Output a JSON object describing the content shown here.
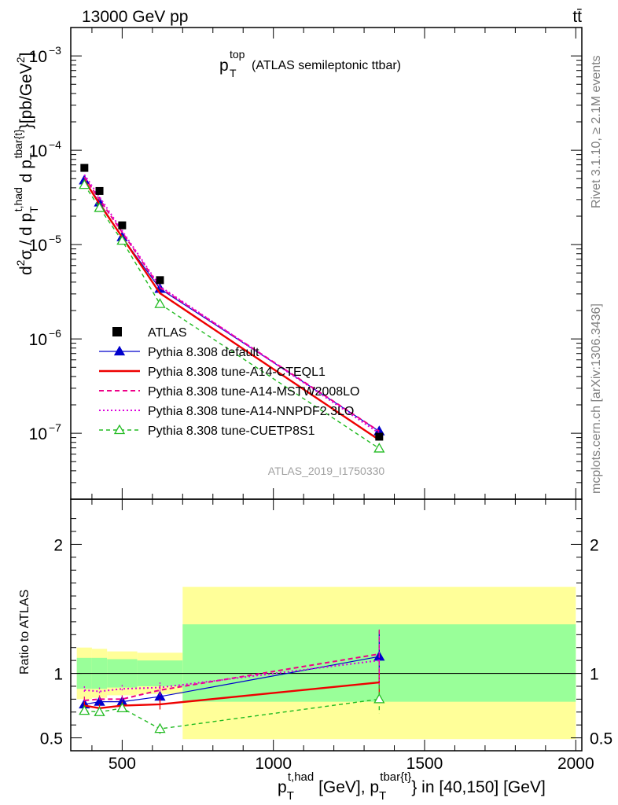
{
  "header": {
    "energy": "13000 GeV pp",
    "process": "tt̄"
  },
  "side": {
    "rivet": "Rivet 3.1.10, ≥ 2.1M events",
    "mcplots": "mcplots.cern.ch [arXiv:1306.3436]"
  },
  "plot": {
    "title_main": "p",
    "title_sub": "T",
    "title_sup": "top",
    "title_rest": "(ATLAS semileptonic ttbar)",
    "analysis_id": "ATLAS_2019_I1750330",
    "ylabel": "d²σ / d p_T^{t,had} d p_T^{tbar{t}} [pb/GeV²]",
    "ratio_ylabel": "Ratio to ATLAS",
    "xlabel": "p_T^{t,had} [GeV], p_T^{tbar{t}} in [40,150] [GeV]"
  },
  "chart_data": {
    "type": "line",
    "x_range": [
      330,
      2020
    ],
    "y_scale": "log",
    "y_range": [
      2e-08,
      0.002
    ],
    "ratio_range": [
      0.4,
      2.35
    ],
    "x_ticks": [
      500,
      1000,
      1500,
      2000
    ],
    "x_tick_labels": [
      "500",
      "1000",
      "1500",
      "2000"
    ],
    "y_ticks": [
      {
        "value": 1e-07,
        "base": "10",
        "exp": "−7"
      },
      {
        "value": 1e-06,
        "base": "10",
        "exp": "−6"
      },
      {
        "value": 1e-05,
        "base": "10",
        "exp": "−5"
      },
      {
        "value": 0.0001,
        "base": "10",
        "exp": "−4"
      },
      {
        "value": 0.001,
        "base": "10",
        "exp": "−3"
      }
    ],
    "ratio_ticks": [
      {
        "value": 0.5,
        "label": "0.5"
      },
      {
        "value": 1,
        "label": "1"
      },
      {
        "value": 2,
        "label": "2"
      }
    ],
    "x": [
      375,
      425,
      500,
      625,
      1350
    ],
    "bins": [
      [
        350,
        400
      ],
      [
        400,
        450
      ],
      [
        450,
        550
      ],
      [
        550,
        700
      ],
      [
        700,
        2000
      ]
    ],
    "data": {
      "name": "ATLAS",
      "values": [
        6.5e-05,
        3.7e-05,
        1.6e-05,
        4.2e-06,
        9.2e-08
      ],
      "band_green": [
        [
          0.88,
          1.12
        ],
        [
          0.88,
          1.12
        ],
        [
          0.89,
          1.11
        ],
        [
          0.9,
          1.1
        ],
        [
          0.78,
          1.38
        ]
      ],
      "band_yellow": [
        [
          0.8,
          1.2
        ],
        [
          0.81,
          1.19
        ],
        [
          0.83,
          1.17
        ],
        [
          0.84,
          1.16
        ],
        [
          0.49,
          1.67
        ]
      ]
    },
    "series": [
      {
        "name": "Pythia 8.308 default",
        "color": "#0000cc",
        "dash": "",
        "width": 1.2,
        "marker": "triangle-filled",
        "values": [
          4.8e-05,
          2.8e-05,
          1.2e-05,
          3.4e-06,
          1.05e-07
        ],
        "ratio": [
          0.76,
          0.78,
          0.78,
          0.82,
          1.13
        ],
        "ratio_err": [
          0.03,
          0.03,
          0.03,
          0.04,
          0.2
        ]
      },
      {
        "name": "Pythia 8.308 tune-A14-CTEQL1",
        "color": "#ee0000",
        "dash": "",
        "width": 2.4,
        "marker": "none",
        "values": [
          4.8e-05,
          2.7e-05,
          1.2e-05,
          3.05e-06,
          8.5e-08
        ],
        "ratio": [
          0.75,
          0.73,
          0.75,
          0.76,
          0.93
        ],
        "ratio_err": [
          0.03,
          0.03,
          0.03,
          0.04,
          0.11
        ]
      },
      {
        "name": "Pythia 8.308 tune-A14-MSTW2008LO",
        "color": "#ee0088",
        "dash": "6,4",
        "width": 2.0,
        "marker": "none",
        "values": [
          5.2e-05,
          3e-05,
          1.35e-05,
          3.5e-06,
          1.05e-07
        ],
        "ratio": [
          0.79,
          0.8,
          0.8,
          0.87,
          1.15
        ],
        "ratio_err": [
          0.03,
          0.03,
          0.03,
          0.04,
          0.19
        ]
      },
      {
        "name": "Pythia 8.308 tune-A14-NNPDF2.3LO",
        "color": "#dd00dd",
        "dash": "2,3",
        "width": 2.0,
        "marker": "none",
        "values": [
          5.5e-05,
          3.2e-05,
          1.4e-05,
          3.6e-06,
          1e-07
        ],
        "ratio": [
          0.87,
          0.86,
          0.88,
          0.89,
          1.1
        ],
        "ratio_err": [
          0.03,
          0.03,
          0.03,
          0.04,
          0.19
        ]
      },
      {
        "name": "Pythia 8.308 tune-CUETP8S1",
        "color": "#22bb22",
        "dash": "5,4",
        "width": 1.4,
        "marker": "triangle-open",
        "values": [
          4.3e-05,
          2.45e-05,
          1.1e-05,
          2.35e-06,
          6.9e-08
        ],
        "ratio": [
          0.71,
          0.7,
          0.73,
          0.57,
          0.8
        ],
        "ratio_err": [
          0.03,
          0.03,
          0.03,
          0.04,
          0.11
        ]
      }
    ],
    "legend": {
      "placement": "lower-left",
      "entries": [
        "ATLAS",
        "Pythia 8.308 default",
        "Pythia 8.308 tune-A14-CTEQL1",
        "Pythia 8.308 tune-A14-MSTW2008LO",
        "Pythia 8.308 tune-A14-NNPDF2.3LO",
        "Pythia 8.308 tune-CUETP8S1"
      ]
    }
  }
}
